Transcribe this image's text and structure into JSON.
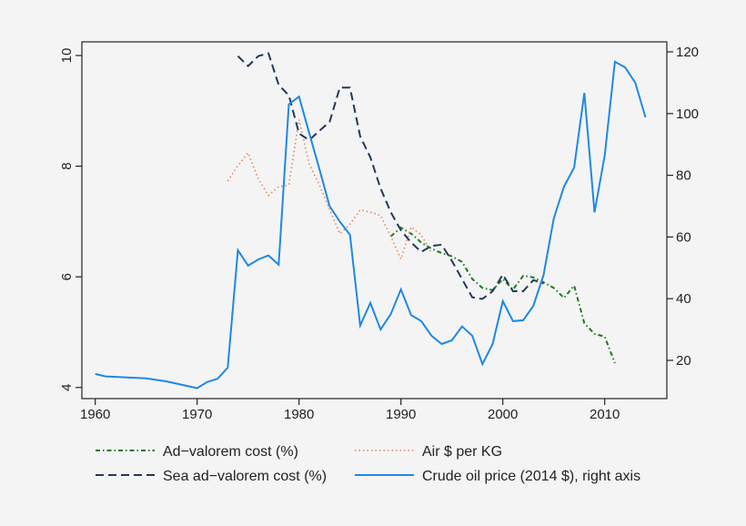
{
  "chart_data": {
    "type": "line",
    "title": "",
    "xlabel": "",
    "ylabel": "",
    "y2label": "",
    "xlim": [
      1958.7,
      2016
    ],
    "ylim": [
      3.8,
      10.25
    ],
    "y2lim": [
      9.4,
      123
    ],
    "x_ticks": [
      1960,
      1970,
      1980,
      1990,
      2000,
      2010
    ],
    "y_ticks": [
      4,
      6,
      8,
      10
    ],
    "y2_ticks": [
      20,
      40,
      60,
      80,
      100,
      120
    ],
    "grid": false,
    "legend_placement": "bottom",
    "series": [
      {
        "name": "Ad−valorem cost (%)",
        "axis": "left",
        "style": "dashdot",
        "color": "#1f7a1f",
        "x": [
          1989,
          1990,
          1991,
          1992,
          1993,
          1994,
          1995,
          1996,
          1997,
          1998,
          1999,
          2000,
          2001,
          2002,
          2003,
          2004,
          2005,
          2006,
          2007,
          2008,
          2009,
          2010,
          2011
        ],
        "values": [
          6.73,
          6.89,
          6.78,
          6.62,
          6.51,
          6.43,
          6.37,
          6.27,
          5.96,
          5.8,
          5.76,
          5.96,
          5.77,
          6.02,
          5.99,
          5.9,
          5.8,
          5.62,
          5.84,
          5.16,
          4.97,
          4.92,
          4.44
        ]
      },
      {
        "name": "Air $ per KG",
        "axis": "left",
        "style": "dotted",
        "color": "#e8845c",
        "x": [
          1973,
          1974,
          1975,
          1976,
          1977,
          1978,
          1979,
          1980,
          1981,
          1982,
          1983,
          1984,
          1985,
          1986,
          1987,
          1988,
          1989,
          1990,
          1991,
          1992,
          1993
        ],
        "values": [
          7.73,
          8.01,
          8.24,
          7.77,
          7.47,
          7.63,
          7.66,
          8.84,
          8.04,
          7.66,
          7.22,
          6.78,
          6.95,
          7.21,
          7.17,
          7.11,
          6.73,
          6.32,
          6.9,
          6.76,
          6.43
        ]
      },
      {
        "name": "Sea ad−valorem cost (%)",
        "axis": "left",
        "style": "dashed",
        "color": "#22395a",
        "x": [
          1974,
          1975,
          1976,
          1977,
          1978,
          1979,
          1980,
          1981,
          1982,
          1983,
          1984,
          1985,
          1986,
          1987,
          1988,
          1989,
          1990,
          1991,
          1992,
          1993,
          1994,
          1995,
          1996,
          1997,
          1998,
          1999,
          2000,
          2001,
          2002,
          2003,
          2004
        ],
        "values": [
          9.99,
          9.81,
          9.99,
          10.04,
          9.47,
          9.28,
          8.59,
          8.47,
          8.64,
          8.8,
          9.42,
          9.42,
          8.54,
          8.16,
          7.6,
          7.17,
          6.84,
          6.62,
          6.45,
          6.56,
          6.58,
          6.29,
          5.96,
          5.63,
          5.6,
          5.74,
          6.04,
          5.74,
          5.74,
          5.94,
          5.88
        ]
      },
      {
        "name": "Crude oil price (2014 $), right axis",
        "axis": "right",
        "style": "solid",
        "color": "#1e88e5",
        "x": [
          1960,
          1961,
          1965,
          1967,
          1970,
          1971,
          1972,
          1973,
          1974,
          1975,
          1976,
          1977,
          1978,
          1979,
          1980,
          1981,
          1982,
          1983,
          1984,
          1985,
          1986,
          1987,
          1988,
          1989,
          1990,
          1991,
          1992,
          1993,
          1994,
          1995,
          1996,
          1997,
          1998,
          1999,
          2000,
          2001,
          2002,
          2003,
          2004,
          2005,
          2006,
          2007,
          2008,
          2009,
          2010,
          2011,
          2012,
          2013,
          2014
        ],
        "values": [
          15.6,
          14.8,
          14.2,
          13.2,
          11.0,
          13.0,
          14.0,
          17.6,
          55.7,
          50.7,
          52.7,
          54.0,
          51.0,
          103.0,
          105.5,
          93.7,
          82.0,
          70.0,
          65.0,
          60.7,
          31.3,
          38.6,
          30.0,
          35.0,
          43.0,
          34.7,
          32.7,
          28.0,
          25.3,
          26.5,
          31.0,
          28.0,
          18.8,
          25.3,
          39.2,
          32.7,
          33.0,
          37.7,
          47.7,
          66.0,
          76.3,
          82.5,
          106.7,
          68.0,
          86.4,
          116.8,
          115.0,
          110.0,
          98.8
        ]
      }
    ]
  }
}
